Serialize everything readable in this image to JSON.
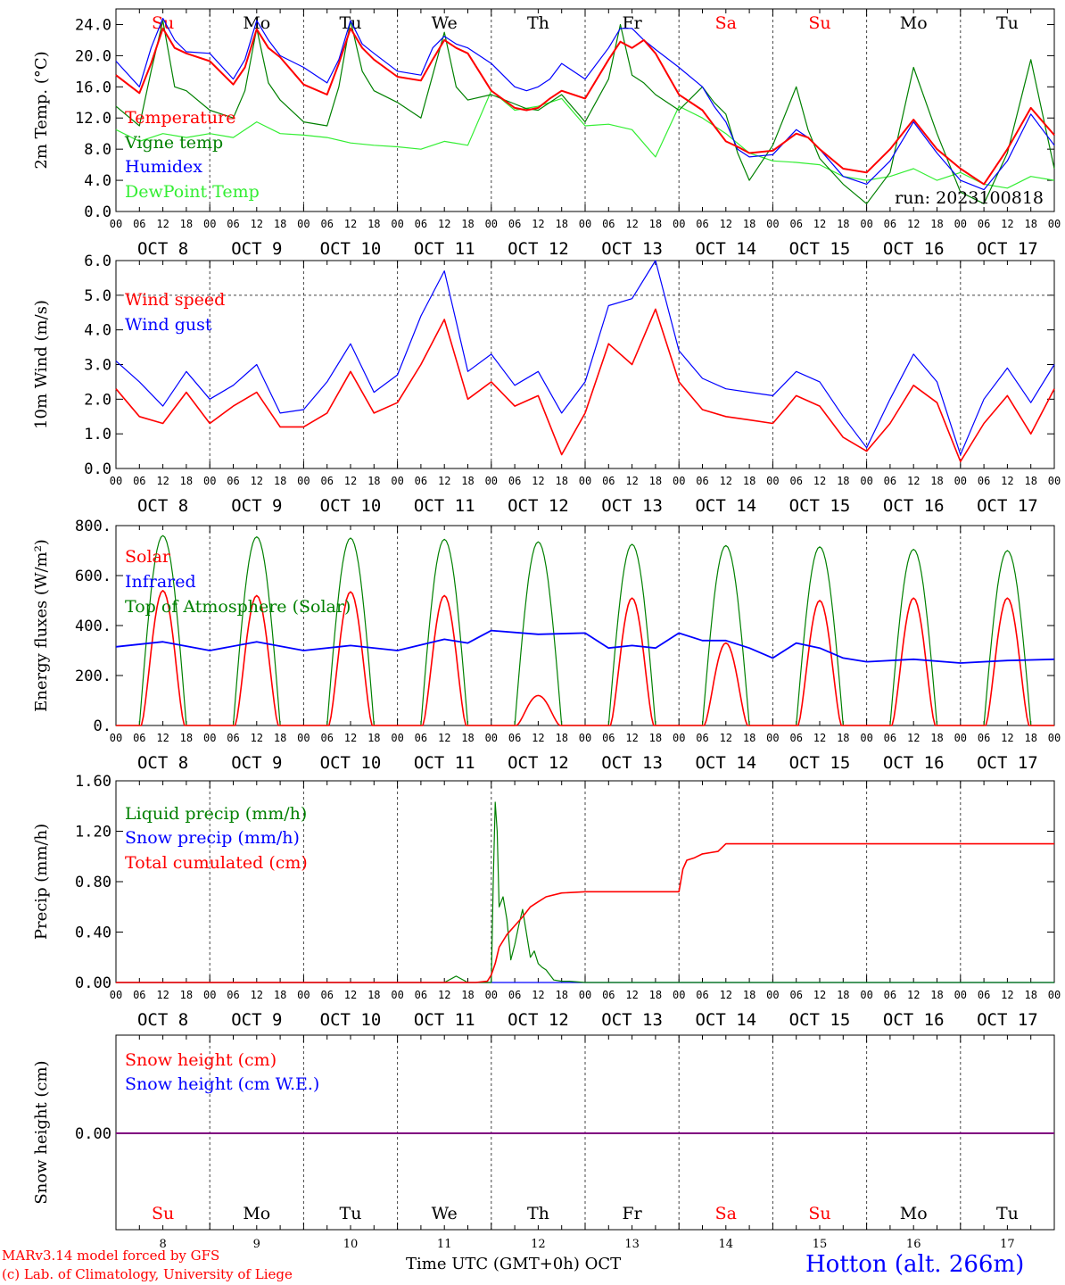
{
  "colors": {
    "red": "#ff0000",
    "green": "#008000",
    "blue": "#0000ff",
    "lightgreen": "#33ee33",
    "black": "#000000",
    "purple": "#800080"
  },
  "days": [
    "Su",
    "Mo",
    "Tu",
    "We",
    "Th",
    "Fr",
    "Sa",
    "Su",
    "Mo",
    "Tu"
  ],
  "weekend": [
    true,
    false,
    false,
    false,
    false,
    false,
    true,
    true,
    false,
    false
  ],
  "hours": [
    "00",
    "06",
    "12",
    "18"
  ],
  "dates": [
    "OCT  8",
    "OCT  9",
    "OCT 10",
    "OCT 11",
    "OCT 12",
    "OCT 13",
    "OCT 14",
    "OCT 15",
    "OCT 16",
    "OCT 17"
  ],
  "day_numbers": [
    "8",
    "9",
    "10",
    "11",
    "12",
    "13",
    "14",
    "15",
    "16",
    "17"
  ],
  "footer": {
    "model": "MARv3.14 model forced by GFS",
    "lab": "(c) Lab. of Climatology, University of Liege",
    "time_label": "Time UTC (GMT+0h)",
    "month": "OCT",
    "station": "Hotton (alt. 266m)"
  },
  "chart_data": [
    {
      "type": "line",
      "ylabel": "2m Temp. (°C)",
      "ylim": [
        0,
        26
      ],
      "yticks": [
        "0.0",
        "4.0",
        "8.0",
        "12.0",
        "16.0",
        "20.0",
        "24.0"
      ],
      "ytick_values": [
        0,
        4,
        8,
        12,
        16,
        20,
        24
      ],
      "run": "run: 2023100818",
      "x_unit": "hours since OCT 8 00 UTC",
      "series": [
        {
          "name": "Temperature",
          "color": "red",
          "x": [
            0,
            6,
            9,
            12,
            15,
            18,
            24,
            30,
            33,
            36,
            39,
            42,
            48,
            54,
            57,
            60,
            63,
            66,
            72,
            78,
            81,
            84,
            87,
            90,
            96,
            102,
            105,
            108,
            111,
            114,
            120,
            126,
            129,
            132,
            135,
            138,
            144,
            150,
            153,
            156,
            159,
            162,
            168,
            174,
            177,
            180,
            186,
            192,
            198,
            204,
            210,
            216,
            222,
            228,
            234,
            240
          ],
          "y": [
            17.5,
            15.2,
            19.0,
            23.5,
            21.0,
            20.3,
            19.3,
            16.3,
            18.5,
            23.4,
            21.0,
            19.8,
            16.3,
            15.0,
            19.0,
            23.5,
            21.0,
            19.5,
            17.3,
            16.8,
            19.5,
            22.0,
            21.0,
            20.3,
            15.5,
            13.3,
            13.0,
            13.3,
            14.5,
            15.5,
            14.5,
            19.5,
            21.8,
            21.0,
            22.0,
            20.3,
            15.0,
            13.0,
            11.0,
            9.0,
            8.3,
            7.5,
            7.8,
            10.0,
            9.5,
            8.0,
            5.5,
            5.0,
            8.0,
            11.8,
            8.0,
            5.5,
            3.5,
            8.0,
            13.3,
            9.8
          ]
        },
        {
          "name": "Vigne temp",
          "color": "green",
          "x": [
            0,
            6,
            9,
            12,
            15,
            18,
            24,
            30,
            33,
            36,
            39,
            42,
            48,
            54,
            57,
            60,
            63,
            66,
            72,
            78,
            81,
            84,
            87,
            90,
            96,
            102,
            105,
            108,
            111,
            114,
            120,
            126,
            129,
            132,
            135,
            138,
            144,
            150,
            153,
            156,
            159,
            162,
            168,
            174,
            177,
            180,
            186,
            192,
            198,
            204,
            210,
            216,
            222,
            228,
            234,
            240
          ],
          "y": [
            13.5,
            11.0,
            18.0,
            24.5,
            16.0,
            15.5,
            13.0,
            12.0,
            15.5,
            23.5,
            16.5,
            14.3,
            11.5,
            11.0,
            16.0,
            24.5,
            18.0,
            15.5,
            14.0,
            12.0,
            17.5,
            23.0,
            16.0,
            14.3,
            15.0,
            13.8,
            13.2,
            13.0,
            14.0,
            15.0,
            11.5,
            17.0,
            24.0,
            17.5,
            16.5,
            15.0,
            13.0,
            16.0,
            14.0,
            12.5,
            7.5,
            4.0,
            8.5,
            16.0,
            10.5,
            6.8,
            3.5,
            1.0,
            5.0,
            18.5,
            10.0,
            2.5,
            1.0,
            7.5,
            19.5,
            5.5
          ]
        },
        {
          "name": "Humidex",
          "color": "blue",
          "x": [
            0,
            6,
            9,
            12,
            15,
            18,
            24,
            30,
            33,
            36,
            39,
            42,
            48,
            54,
            57,
            60,
            63,
            66,
            72,
            78,
            81,
            84,
            87,
            90,
            96,
            102,
            105,
            108,
            111,
            114,
            120,
            126,
            129,
            132,
            135,
            138,
            144,
            150,
            153,
            156,
            159,
            162,
            168,
            174,
            177,
            180,
            186,
            192,
            198,
            204,
            210,
            216,
            222,
            228,
            234,
            240
          ],
          "y": [
            19.3,
            16.0,
            21.0,
            24.8,
            22.0,
            20.5,
            20.3,
            17.0,
            19.5,
            24.5,
            22.0,
            20.0,
            18.5,
            16.5,
            19.5,
            24.5,
            21.5,
            20.3,
            18.0,
            17.5,
            21.0,
            22.5,
            21.5,
            21.0,
            19.0,
            16.0,
            15.5,
            16.0,
            17.0,
            19.0,
            17.0,
            21.0,
            23.5,
            23.5,
            22.0,
            20.8,
            18.5,
            16.0,
            13.5,
            11.5,
            8.0,
            7.0,
            7.3,
            10.5,
            9.5,
            8.0,
            4.5,
            3.5,
            6.5,
            11.5,
            7.5,
            4.0,
            2.8,
            6.5,
            12.5,
            8.5
          ]
        },
        {
          "name": "DewPoint Temp",
          "color": "lightgreen",
          "x": [
            0,
            6,
            12,
            18,
            24,
            30,
            36,
            42,
            48,
            54,
            60,
            66,
            72,
            78,
            84,
            90,
            96,
            102,
            108,
            114,
            120,
            126,
            132,
            138,
            144,
            150,
            156,
            162,
            168,
            174,
            180,
            186,
            192,
            198,
            204,
            210,
            216,
            222,
            228,
            234,
            240
          ],
          "y": [
            10.5,
            9.0,
            10.0,
            9.5,
            10.0,
            9.5,
            11.5,
            10.0,
            9.8,
            9.5,
            8.8,
            8.5,
            8.3,
            8.0,
            9.0,
            8.5,
            15.5,
            13.0,
            13.5,
            14.5,
            11.0,
            11.2,
            10.5,
            7.0,
            13.5,
            12.0,
            10.0,
            7.5,
            6.5,
            6.3,
            6.0,
            4.5,
            4.0,
            4.5,
            5.5,
            4.0,
            5.0,
            3.5,
            3.0,
            4.5,
            4.0
          ]
        }
      ]
    },
    {
      "type": "line",
      "ylabel": "10m Wind (m/s)",
      "ylim": [
        0,
        6
      ],
      "yticks": [
        "0.0",
        "1.0",
        "2.0",
        "3.0",
        "4.0",
        "5.0",
        "6.0"
      ],
      "ytick_values": [
        0,
        1,
        2,
        3,
        4,
        5,
        6
      ],
      "ref_line": 5,
      "x_unit": "hours since OCT 8 00 UTC",
      "series": [
        {
          "name": "Wind speed",
          "color": "red",
          "x": [
            0,
            6,
            12,
            18,
            24,
            30,
            36,
            42,
            48,
            54,
            60,
            66,
            72,
            78,
            84,
            90,
            96,
            102,
            108,
            114,
            120,
            126,
            132,
            138,
            144,
            150,
            156,
            162,
            168,
            174,
            180,
            186,
            192,
            198,
            204,
            210,
            216,
            222,
            228,
            234,
            240
          ],
          "y": [
            2.3,
            1.5,
            1.3,
            2.2,
            1.3,
            1.8,
            2.2,
            1.2,
            1.2,
            1.6,
            2.8,
            1.6,
            1.9,
            3.0,
            4.3,
            2.0,
            2.5,
            1.8,
            2.1,
            0.4,
            1.6,
            3.6,
            3.0,
            4.6,
            2.5,
            1.7,
            1.5,
            1.4,
            1.3,
            2.1,
            1.8,
            0.9,
            0.5,
            1.3,
            2.4,
            1.9,
            0.2,
            1.3,
            2.1,
            1.0,
            2.3
          ]
        },
        {
          "name": "Wind gust",
          "color": "blue",
          "x": [
            0,
            6,
            12,
            18,
            24,
            30,
            36,
            42,
            48,
            54,
            60,
            66,
            72,
            78,
            84,
            90,
            96,
            102,
            108,
            114,
            120,
            126,
            132,
            138,
            144,
            150,
            156,
            162,
            168,
            174,
            180,
            186,
            192,
            198,
            204,
            210,
            216,
            222,
            228,
            234,
            240
          ],
          "y": [
            3.1,
            2.5,
            1.8,
            2.8,
            2.0,
            2.4,
            3.0,
            1.6,
            1.7,
            2.5,
            3.6,
            2.2,
            2.7,
            4.4,
            5.7,
            2.8,
            3.3,
            2.4,
            2.8,
            1.6,
            2.5,
            4.7,
            4.9,
            6.0,
            3.4,
            2.6,
            2.3,
            2.2,
            2.1,
            2.8,
            2.5,
            1.5,
            0.6,
            2.0,
            3.3,
            2.5,
            0.4,
            2.0,
            2.9,
            1.9,
            3.0
          ]
        }
      ]
    },
    {
      "type": "line",
      "ylabel": "Energy fluxes (W/m²)",
      "ylim": [
        0,
        800
      ],
      "yticks": [
        "0.",
        "200.",
        "400.",
        "600.",
        "800."
      ],
      "ytick_values": [
        0,
        200,
        400,
        600,
        800
      ],
      "x_unit": "hours since OCT 8 00 UTC",
      "solar_peaks": [
        540,
        520,
        535,
        520,
        120,
        510,
        330,
        500,
        510,
        510
      ],
      "toa_peaks": [
        760,
        755,
        750,
        745,
        735,
        725,
        720,
        715,
        705,
        700
      ],
      "series": [
        {
          "name": "Solar",
          "color": "red"
        },
        {
          "name": "Infrared",
          "color": "blue",
          "x": [
            0,
            12,
            24,
            36,
            48,
            60,
            72,
            84,
            90,
            96,
            108,
            120,
            126,
            132,
            138,
            144,
            150,
            156,
            162,
            168,
            174,
            180,
            186,
            192,
            204,
            216,
            228,
            240
          ],
          "y": [
            315,
            335,
            300,
            335,
            300,
            320,
            300,
            345,
            330,
            380,
            365,
            370,
            310,
            320,
            310,
            370,
            340,
            340,
            310,
            270,
            330,
            310,
            270,
            255,
            265,
            250,
            260,
            265
          ]
        },
        {
          "name": "Top of Atmosphere (Solar)",
          "color": "green"
        }
      ]
    },
    {
      "type": "line",
      "ylabel": "Precip (mm/h)",
      "ylim": [
        0,
        1.6
      ],
      "yticks": [
        "0.00",
        "0.40",
        "0.80",
        "1.20",
        "1.60"
      ],
      "ytick_values": [
        0,
        0.4,
        0.8,
        1.2,
        1.6
      ],
      "x_unit": "hours since OCT 8 00 UTC",
      "series": [
        {
          "name": "Liquid precip (mm/h)",
          "color": "green",
          "x": [
            0,
            84,
            87,
            90,
            96,
            96.5,
            97,
            97.5,
            98,
            99,
            100,
            101,
            102,
            103,
            104,
            106,
            107,
            108,
            109,
            110,
            112,
            114,
            116,
            120,
            123,
            126,
            240
          ],
          "y": [
            0,
            0,
            0.05,
            0,
            0,
            0.8,
            1.43,
            1.2,
            0.6,
            0.68,
            0.5,
            0.18,
            0.3,
            0.45,
            0.58,
            0.2,
            0.25,
            0.15,
            0.12,
            0.1,
            0.02,
            0.01,
            0.01,
            0,
            0,
            0,
            0
          ]
        },
        {
          "name": "Snow precip (mm/h)",
          "color": "blue",
          "x": [
            0,
            240
          ],
          "y": [
            0,
            0
          ]
        },
        {
          "name": "Total cumulated (cm)",
          "color": "red",
          "x": [
            0,
            92,
            95,
            96,
            97,
            98,
            100,
            102,
            104,
            106,
            108,
            110,
            114,
            120,
            126,
            132,
            138,
            144,
            145,
            146,
            148,
            150,
            152,
            154,
            156,
            240
          ],
          "y": [
            0,
            0,
            0.01,
            0.06,
            0.15,
            0.28,
            0.38,
            0.45,
            0.52,
            0.6,
            0.64,
            0.68,
            0.71,
            0.72,
            0.72,
            0.72,
            0.72,
            0.72,
            0.9,
            0.97,
            0.99,
            1.02,
            1.03,
            1.04,
            1.1,
            1.1
          ]
        }
      ]
    },
    {
      "type": "line",
      "ylabel": "Snow height (cm)",
      "yticks": [
        "0.00"
      ],
      "x_unit": "hours since OCT 8 00 UTC",
      "series": [
        {
          "name": "Snow height (cm)",
          "color": "red",
          "x": [
            0,
            240
          ],
          "y": [
            0,
            0
          ]
        },
        {
          "name": "Snow height (cm W.E.)",
          "color": "blue",
          "x": [
            0,
            240
          ],
          "y": [
            0,
            0
          ]
        }
      ]
    }
  ]
}
